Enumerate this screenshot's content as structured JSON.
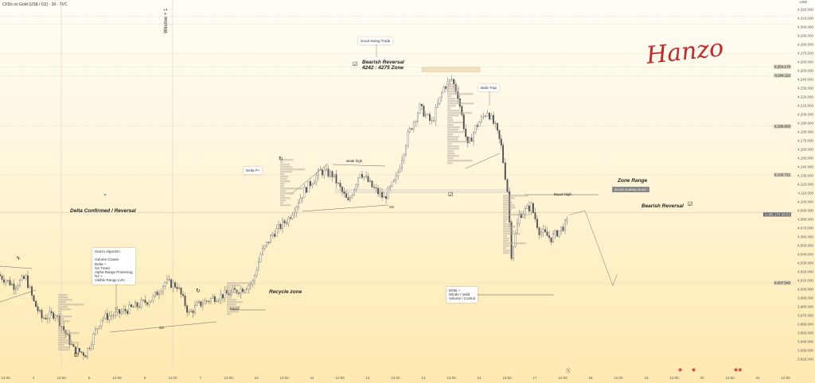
{
  "header": {
    "symbol_title": "CFDs on Gold (US$ / OZ) · 30 · TVC",
    "currency": "USD",
    "vertical_label": "Window + 1"
  },
  "signature": "Hanzo",
  "price_axis": {
    "min": 3920,
    "max": 4320,
    "step": 10,
    "marked": [
      {
        "value": "4,254.176",
        "price": 4254.176,
        "style": "light"
      },
      {
        "value": "4,244.112",
        "price": 4244.112,
        "style": "light"
      },
      {
        "value": "4,186.603",
        "price": 4186.603,
        "style": "light"
      },
      {
        "value": "4,130.721",
        "price": 4130.721,
        "style": "light"
      },
      {
        "value": "4,085.170",
        "sub": "09:53",
        "price": 4085.17,
        "style": "dark"
      },
      {
        "value": "4,007.040",
        "price": 4007.04,
        "style": "light"
      }
    ]
  },
  "time_axis": {
    "labels": [
      "12:00",
      "4",
      "12:00",
      "5",
      "12:00",
      "6",
      "12:00",
      "7",
      "12:00",
      "10",
      "12:00",
      "11",
      "12:00",
      "12",
      "12:00",
      "13",
      "12:00",
      "14",
      "12:00",
      "17",
      "12:00",
      "18",
      "12:00",
      "19",
      "12:00",
      "20",
      "12:00",
      "21",
      "12:00"
    ]
  },
  "annotations": {
    "good_swing": "Good Swing Trade",
    "bearish_top_1": "Bearish Reversal",
    "bearish_top_2": "4242 : 4275 Zone",
    "bulls_trap": "Bulls Trap",
    "weak_high": "weak high",
    "delta_p": "Delta P+",
    "ss_1": "SS",
    "ss_2": "SS",
    "delta_confirmed": "Delta Confirmed / Reversal",
    "hanzo_box": "Hanzo Algortsm\n\nVolume Cluster\nDelta +\nSS Trend\nAlpha Range Protecting\nNY +\nVisible Range LVH",
    "recycle": "Recycle zone",
    "equal": "Equal",
    "equal_high": "Equal High",
    "zone_range": "Zone Range",
    "zone_badge": "20.447 (0.50%) 20,447",
    "bearish_right": "Bearish Reversal",
    "delta_box": "Delta +\nWindo / Valid\nVolume / Control"
  },
  "chart_data": {
    "type": "candlestick",
    "x_unit": "half-day periods from first label",
    "path": [
      [
        -0.2,
        4017
      ],
      [
        0.37,
        4004
      ],
      [
        0.8,
        4013
      ],
      [
        1.09,
        3985
      ],
      [
        1.37,
        3967
      ],
      [
        1.86,
        3972
      ],
      [
        2.09,
        3958
      ],
      [
        2.51,
        3931
      ],
      [
        2.94,
        3926
      ],
      [
        3.51,
        3967
      ],
      [
        4.09,
        3972
      ],
      [
        4.8,
        3981
      ],
      [
        5.37,
        3990
      ],
      [
        5.8,
        4008
      ],
      [
        6.23,
        4004
      ],
      [
        6.66,
        3972
      ],
      [
        6.94,
        3981
      ],
      [
        7.51,
        3990
      ],
      [
        8.09,
        3995
      ],
      [
        8.51,
        4000
      ],
      [
        8.94,
        4008
      ],
      [
        9.23,
        4040
      ],
      [
        9.66,
        4063
      ],
      [
        10.23,
        4081
      ],
      [
        10.8,
        4113
      ],
      [
        11.37,
        4135
      ],
      [
        11.8,
        4131
      ],
      [
        12.37,
        4099
      ],
      [
        12.8,
        4135
      ],
      [
        13.23,
        4117
      ],
      [
        13.66,
        4104
      ],
      [
        14.09,
        4126
      ],
      [
        14.51,
        4176
      ],
      [
        14.94,
        4208
      ],
      [
        15.37,
        4190
      ],
      [
        15.8,
        4231
      ],
      [
        16.09,
        4240
      ],
      [
        16.31,
        4222
      ],
      [
        16.66,
        4163
      ],
      [
        16.94,
        4185
      ],
      [
        17.37,
        4204
      ],
      [
        17.66,
        4185
      ],
      [
        17.86,
        4163
      ],
      [
        18.09,
        4113
      ],
      [
        18.23,
        4040
      ],
      [
        18.51,
        4085
      ],
      [
        18.94,
        4095
      ],
      [
        19.23,
        4067
      ],
      [
        19.66,
        4058
      ],
      [
        20.23,
        4076
      ]
    ],
    "projection": [
      [
        20.23,
        4085
      ],
      [
        20.8,
        4090
      ],
      [
        21.8,
        4004
      ],
      [
        21.95,
        4017
      ]
    ],
    "levels": [
      4312,
      4303,
      4270,
      4254.176,
      4244.112,
      4186.603,
      4130.721,
      4088,
      4007.04
    ]
  }
}
